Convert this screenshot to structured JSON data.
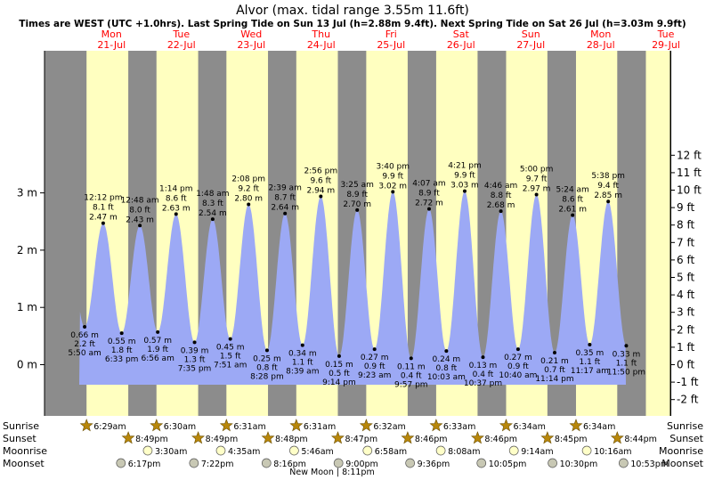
{
  "title": "Alvor (max. tidal range 3.55m 11.6ft)",
  "subtitle": "Times are WEST (UTC +1.0hrs). Last Spring Tide on Sun 13 Jul (h=2.88m 9.4ft). Next Spring Tide on Sat 26 Jul (h=3.03m 9.9ft)",
  "chart_data": {
    "type": "area",
    "days": [
      {
        "name": "Mon",
        "date": "21-Jul"
      },
      {
        "name": "Tue",
        "date": "22-Jul"
      },
      {
        "name": "Wed",
        "date": "23-Jul"
      },
      {
        "name": "Thu",
        "date": "24-Jul"
      },
      {
        "name": "Fri",
        "date": "25-Jul"
      },
      {
        "name": "Sat",
        "date": "26-Jul"
      },
      {
        "name": "Sun",
        "date": "27-Jul"
      },
      {
        "name": "Mon",
        "date": "28-Jul"
      },
      {
        "name": "Tue",
        "date": "29-Jul"
      }
    ],
    "y_left": {
      "unit": "m",
      "ticks": [
        "0 m",
        "1 m",
        "2 m",
        "3 m"
      ],
      "values": [
        0,
        1,
        2,
        3
      ]
    },
    "y_right": {
      "unit": "ft",
      "ticks": [
        "-2 ft",
        "-1 ft",
        "0 ft",
        "1 ft",
        "2 ft",
        "3 ft",
        "4 ft",
        "5 ft",
        "6 ft",
        "7 ft",
        "8 ft",
        "9 ft",
        "10 ft",
        "11 ft",
        "12 ft"
      ],
      "values": [
        -2,
        -1,
        0,
        1,
        2,
        3,
        4,
        5,
        6,
        7,
        8,
        9,
        10,
        11,
        12
      ]
    },
    "ylim_m": [
      -0.55,
      3.7
    ],
    "tides": [
      {
        "day": 0,
        "time_h": 5.83,
        "type": "low",
        "time": "5:50 am",
        "m": "0.66 m",
        "ft": "2.2 ft",
        "h": 0.66
      },
      {
        "day": 0,
        "time_h": 12.2,
        "type": "high",
        "time": "12:12 pm",
        "m": "2.47 m",
        "ft": "8.1 ft",
        "h": 2.47
      },
      {
        "day": 0,
        "time_h": 18.55,
        "type": "low",
        "time": "6:33 pm",
        "m": "0.55 m",
        "ft": "1.8 ft",
        "h": 0.55
      },
      {
        "day": 1,
        "time_h": 0.8,
        "type": "high",
        "time": "12:48 am",
        "m": "2.43 m",
        "ft": "8.0 ft",
        "h": 2.43
      },
      {
        "day": 1,
        "time_h": 6.93,
        "type": "low",
        "time": "6:56 am",
        "m": "0.57 m",
        "ft": "1.9 ft",
        "h": 0.57
      },
      {
        "day": 1,
        "time_h": 13.23,
        "type": "high",
        "time": "1:14 pm",
        "m": "2.63 m",
        "ft": "8.6 ft",
        "h": 2.63
      },
      {
        "day": 1,
        "time_h": 19.58,
        "type": "low",
        "time": "7:35 pm",
        "m": "0.39 m",
        "ft": "1.3 ft",
        "h": 0.39
      },
      {
        "day": 2,
        "time_h": 1.8,
        "type": "high",
        "time": "1:48 am",
        "m": "2.54 m",
        "ft": "8.3 ft",
        "h": 2.54
      },
      {
        "day": 2,
        "time_h": 7.85,
        "type": "low",
        "time": "7:51 am",
        "m": "0.45 m",
        "ft": "1.5 ft",
        "h": 0.45
      },
      {
        "day": 2,
        "time_h": 14.13,
        "type": "high",
        "time": "2:08 pm",
        "m": "2.80 m",
        "ft": "9.2 ft",
        "h": 2.8
      },
      {
        "day": 2,
        "time_h": 20.47,
        "type": "low",
        "time": "8:28 pm",
        "m": "0.25 m",
        "ft": "0.8 ft",
        "h": 0.25
      },
      {
        "day": 3,
        "time_h": 2.65,
        "type": "high",
        "time": "2:39 am",
        "m": "2.64 m",
        "ft": "8.7 ft",
        "h": 2.64
      },
      {
        "day": 3,
        "time_h": 8.65,
        "type": "low",
        "time": "8:39 am",
        "m": "0.34 m",
        "ft": "1.1 ft",
        "h": 0.34
      },
      {
        "day": 3,
        "time_h": 14.93,
        "type": "high",
        "time": "2:56 pm",
        "m": "2.94 m",
        "ft": "9.6 ft",
        "h": 2.94
      },
      {
        "day": 3,
        "time_h": 21.23,
        "type": "low",
        "time": "9:14 pm",
        "m": "0.15 m",
        "ft": "0.5 ft",
        "h": 0.15
      },
      {
        "day": 4,
        "time_h": 3.42,
        "type": "high",
        "time": "3:25 am",
        "m": "2.70 m",
        "ft": "8.9 ft",
        "h": 2.7
      },
      {
        "day": 4,
        "time_h": 9.38,
        "type": "low",
        "time": "9:23 am",
        "m": "0.27 m",
        "ft": "0.9 ft",
        "h": 0.27
      },
      {
        "day": 4,
        "time_h": 15.67,
        "type": "high",
        "time": "3:40 pm",
        "m": "3.02 m",
        "ft": "9.9 ft",
        "h": 3.02
      },
      {
        "day": 4,
        "time_h": 21.95,
        "type": "low",
        "time": "9:57 pm",
        "m": "0.11 m",
        "ft": "0.4 ft",
        "h": 0.11
      },
      {
        "day": 5,
        "time_h": 4.12,
        "type": "high",
        "time": "4:07 am",
        "m": "2.72 m",
        "ft": "8.9 ft",
        "h": 2.72
      },
      {
        "day": 5,
        "time_h": 10.05,
        "type": "low",
        "time": "10:03 am",
        "m": "0.24 m",
        "ft": "0.8 ft",
        "h": 0.24
      },
      {
        "day": 5,
        "time_h": 16.35,
        "type": "high",
        "time": "4:21 pm",
        "m": "3.03 m",
        "ft": "9.9 ft",
        "h": 3.03
      },
      {
        "day": 5,
        "time_h": 22.62,
        "type": "low",
        "time": "10:37 pm",
        "m": "0.13 m",
        "ft": "0.4 ft",
        "h": 0.13
      },
      {
        "day": 6,
        "time_h": 4.77,
        "type": "high",
        "time": "4:46 am",
        "m": "2.68 m",
        "ft": "8.8 ft",
        "h": 2.68
      },
      {
        "day": 6,
        "time_h": 10.67,
        "type": "low",
        "time": "10:40 am",
        "m": "0.27 m",
        "ft": "0.9 ft",
        "h": 0.27
      },
      {
        "day": 6,
        "time_h": 17.0,
        "type": "high",
        "time": "5:00 pm",
        "m": "2.97 m",
        "ft": "9.7 ft",
        "h": 2.97
      },
      {
        "day": 6,
        "time_h": 23.23,
        "type": "low",
        "time": "11:14 pm",
        "m": "0.21 m",
        "ft": "0.7 ft",
        "h": 0.21
      },
      {
        "day": 7,
        "time_h": 5.4,
        "type": "high",
        "time": "5:24 am",
        "m": "2.61 m",
        "ft": "8.6 ft",
        "h": 2.61
      },
      {
        "day": 7,
        "time_h": 11.28,
        "type": "low",
        "time": "11:17 am",
        "m": "0.35 m",
        "ft": "1.1 ft",
        "h": 0.35
      },
      {
        "day": 7,
        "time_h": 17.63,
        "type": "high",
        "time": "5:38 pm",
        "m": "2.85 m",
        "ft": "9.4 ft",
        "h": 2.85
      },
      {
        "day": 7,
        "time_h": 23.83,
        "type": "low",
        "time": "11:50 pm",
        "m": "0.33 m",
        "ft": "1.1 ft",
        "h": 0.33
      }
    ],
    "rows": {
      "sunrise": {
        "label": "Sunrise",
        "times": [
          "6:29am",
          "6:30am",
          "6:31am",
          "6:31am",
          "6:32am",
          "6:33am",
          "6:34am",
          "6:34am"
        ]
      },
      "sunset": {
        "label": "Sunset",
        "times": [
          "8:49pm",
          "8:49pm",
          "8:48pm",
          "8:47pm",
          "8:46pm",
          "8:46pm",
          "8:45pm",
          "8:44pm"
        ]
      },
      "moonrise": {
        "label": "Moonrise",
        "times": [
          "3:30am",
          "4:35am",
          "5:46am",
          "6:58am",
          "8:08am",
          "9:14am",
          "10:16am"
        ]
      },
      "moonset": {
        "label": "Moonset",
        "times": [
          "6:17pm",
          "7:22pm",
          "8:16pm",
          "9:00pm",
          "9:36pm",
          "10:05pm",
          "10:30pm",
          "10:53pm"
        ]
      }
    },
    "moon_phase_note": "New Moon | 8:11pm",
    "colors": {
      "night": "#8c8c8c",
      "day": "#ffffc0",
      "water": "#9ca9f5",
      "day_label": "#ff0000"
    }
  }
}
